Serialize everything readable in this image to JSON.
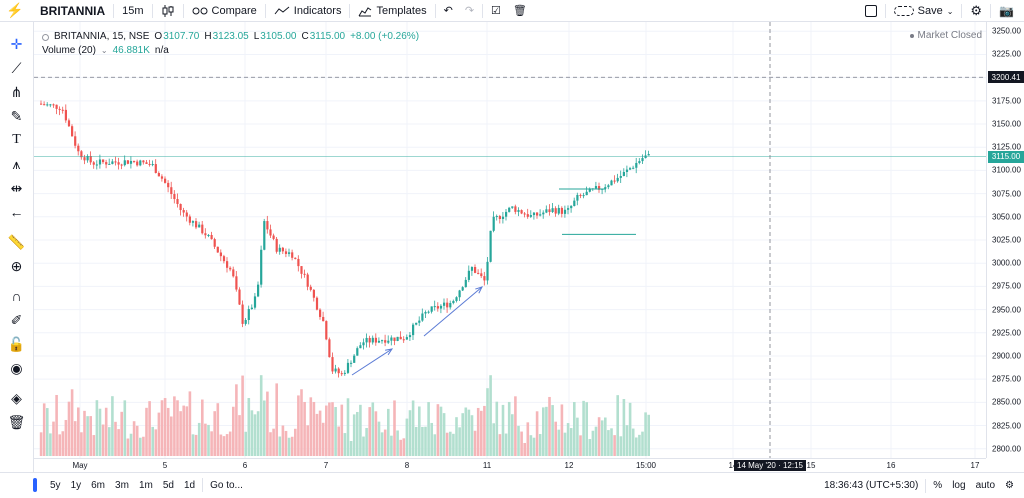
{
  "toolbar": {
    "symbol": "BRITANNIA",
    "interval": "15m",
    "compare_label": "Compare",
    "indicators_label": "Indicators",
    "templates_label": "Templates",
    "save_label": "Save"
  },
  "legend": {
    "title": "BRITANNIA, 15, NSE",
    "o_key": "O",
    "o_val": "3107.70",
    "h_key": "H",
    "h_val": "3123.05",
    "l_key": "L",
    "l_val": "3105.00",
    "c_key": "C",
    "c_val": "3115.00",
    "change": "+8.00 (+0.26%)",
    "volume_title": "Volume (20)",
    "volume_val": "46.881K",
    "volume_na": "n/a",
    "market_status": "Market Closed"
  },
  "price_axis": {
    "ticks": [
      "3250.00",
      "3225.00",
      "3200.00",
      "3175.00",
      "3150.00",
      "3125.00",
      "3100.00",
      "3075.00",
      "3050.00",
      "3025.00",
      "3000.00",
      "2975.00",
      "2950.00",
      "2925.00",
      "2900.00",
      "2875.00",
      "2850.00",
      "2825.00",
      "2800.00"
    ],
    "crosshair_label": "3200.41",
    "last_price_label": "3115.00"
  },
  "time_axis": {
    "ticks": [
      "May",
      "5",
      "6",
      "7",
      "8",
      "11",
      "12",
      "15:00",
      "14",
      "15",
      "16",
      "17"
    ],
    "crosshair_label": "14 May '20 · 12:15"
  },
  "bottom": {
    "ranges": [
      "5y",
      "1y",
      "6m",
      "3m",
      "1m",
      "5d",
      "1d"
    ],
    "goto_label": "Go to...",
    "clock": "18:36:43 (UTC+5:30)",
    "percent_label": "%",
    "log_label": "log",
    "auto_label": "auto"
  },
  "colors": {
    "up": "#26a69a",
    "down": "#ef5350",
    "vol_up": "#b2dfcf",
    "vol_down": "#f5b5b8",
    "last_price": "#26a69a",
    "accent": "#2962ff"
  },
  "chart_data": {
    "type": "candlestick",
    "symbol": "BRITANNIA",
    "exchange": "NSE",
    "interval": "15",
    "ylim": [
      2790,
      3260
    ],
    "last_close": 3115.0,
    "days": [
      "May 4",
      "May 5",
      "May 6",
      "May 7",
      "May 8",
      "May 11",
      "May 12",
      "May 13"
    ],
    "key_points": [
      {
        "day": "May 4",
        "open": 3170,
        "close": 3110
      },
      {
        "day": "May 5",
        "open": 3110,
        "close": 3060
      },
      {
        "day": "May 6",
        "open": 2920,
        "close": 3015
      },
      {
        "day": "May 7",
        "open": 2925,
        "close": 2885
      },
      {
        "day": "May 8",
        "open": 2935,
        "close": 2950
      },
      {
        "day": "May 11",
        "open": 3000,
        "close": 3050
      },
      {
        "day": "May 12",
        "open": 3045,
        "close": 3085
      },
      {
        "day": "May 13",
        "open": 3090,
        "close": 3115
      }
    ]
  }
}
